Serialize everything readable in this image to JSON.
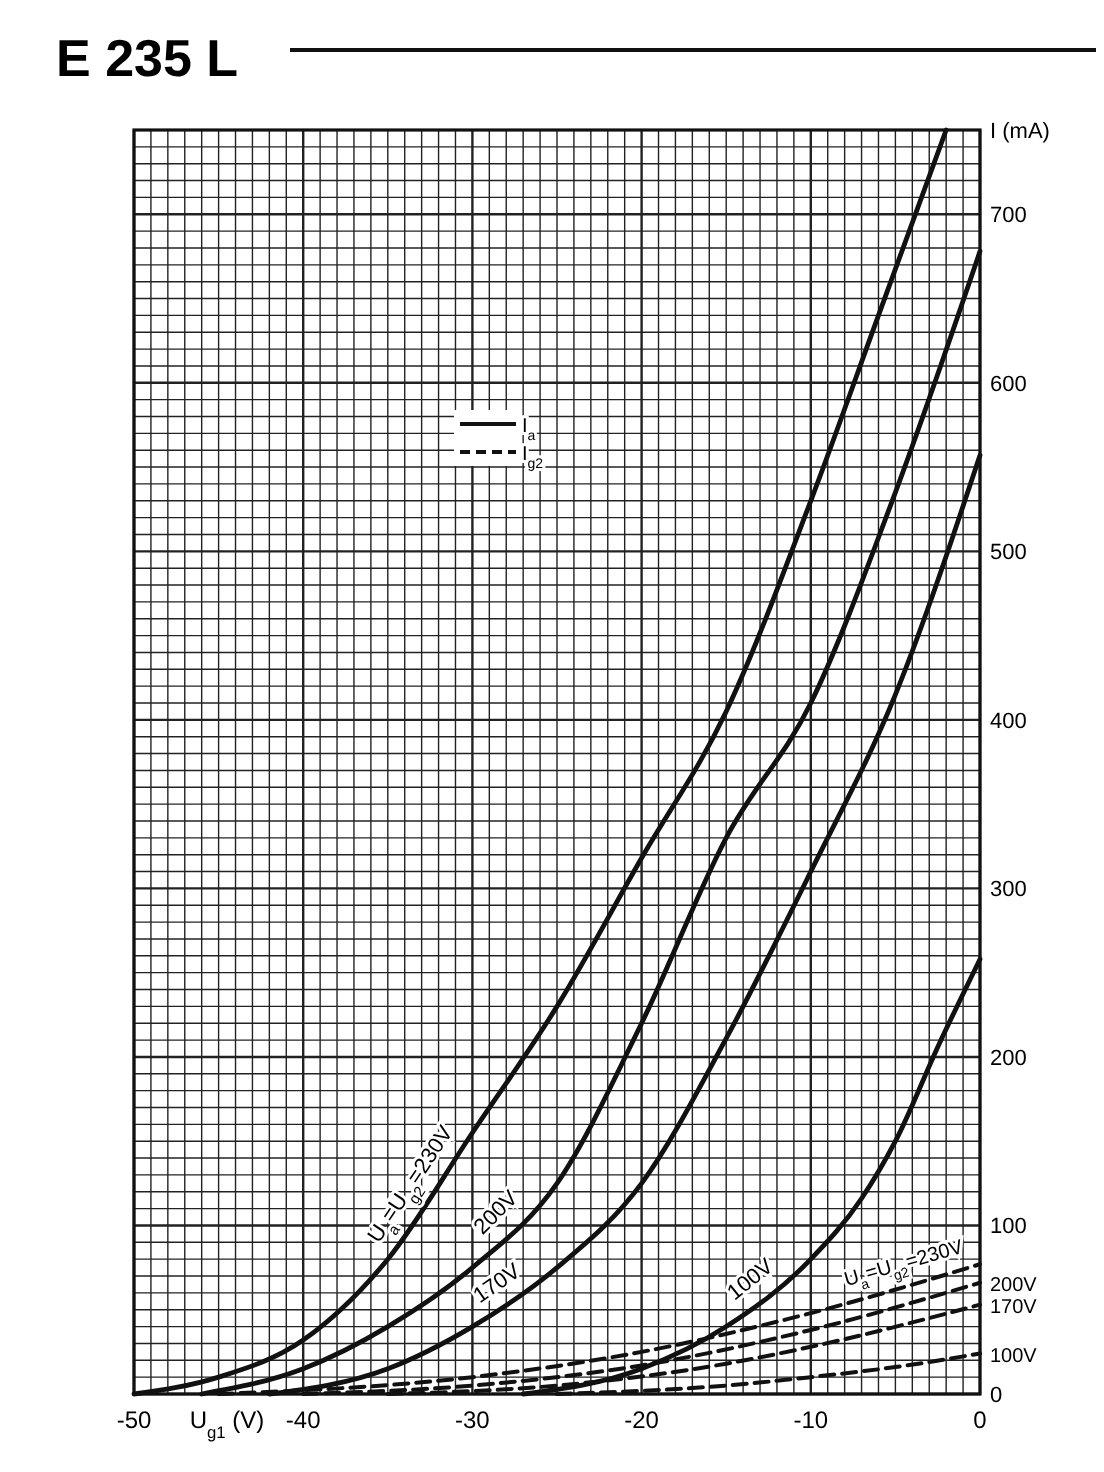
{
  "chart_data": {
    "type": "line",
    "title": "E 235 L",
    "xlabel": "U$_{g1}$ (V)",
    "ylabel": "I (mA)",
    "xlim": [
      -50,
      0
    ],
    "ylim": [
      0,
      750
    ],
    "xticks": [
      -50,
      -40,
      -30,
      -20,
      -10,
      0
    ],
    "yticks": [
      0,
      100,
      200,
      300,
      400,
      500,
      600,
      700
    ],
    "grid": true,
    "marker": "none",
    "annotations": [
      "I$_{a}$",
      "I$_{g2}$"
    ],
    "series": [
      {
        "name": "U$_{a}$=U$_{g2}$=230V",
        "color": "#111111",
        "line_style": "solid",
        "x": [
          -50,
          -45,
          -40,
          -35,
          -30,
          -25,
          -20,
          -15,
          -10,
          -6,
          -2
        ],
        "values": [
          0,
          10,
          32,
          80,
          155,
          230,
          318,
          405,
          530,
          640,
          750
        ]
      },
      {
        "name": "200V",
        "color": "#111111",
        "line_style": "solid",
        "x": [
          -46,
          -40,
          -35,
          -30,
          -25,
          -20,
          -15,
          -10,
          -5,
          0
        ],
        "values": [
          0,
          15,
          40,
          75,
          125,
          220,
          330,
          410,
          535,
          678
        ]
      },
      {
        "name": "170V",
        "color": "#111111",
        "line_style": "solid",
        "x": [
          -42,
          -35,
          -30,
          -25,
          -20,
          -15,
          -10,
          -5,
          0
        ],
        "values": [
          0,
          15,
          40,
          75,
          125,
          211,
          310,
          415,
          557
        ]
      },
      {
        "name": "100V",
        "color": "#111111",
        "line_style": "solid",
        "x": [
          -27,
          -20,
          -15,
          -10,
          -7,
          -5,
          -2.4,
          0
        ],
        "values": [
          0,
          15,
          40,
          80,
          116,
          150,
          208,
          258
        ]
      },
      {
        "name": "U$_{a}$=U$_{g2}$=230V",
        "color": "#111111",
        "line_style": "dashed",
        "x": [
          -45,
          -30,
          -20,
          -10,
          0
        ],
        "values": [
          0,
          10,
          25,
          48,
          77
        ]
      },
      {
        "name": "200V",
        "color": "#111111",
        "line_style": "dashed",
        "x": [
          -40,
          -30,
          -20,
          -10,
          0
        ],
        "values": [
          0,
          5,
          17,
          38,
          66
        ]
      },
      {
        "name": "170V",
        "color": "#111111",
        "line_style": "dashed",
        "x": [
          -35,
          -25,
          -15,
          -10,
          0
        ],
        "values": [
          0,
          5,
          18,
          28,
          53
        ]
      },
      {
        "name": "100V",
        "color": "#111111",
        "line_style": "dashed",
        "x": [
          -25,
          -15,
          -10,
          -5,
          0
        ],
        "values": [
          0,
          5,
          10,
          16,
          24
        ]
      }
    ]
  }
}
